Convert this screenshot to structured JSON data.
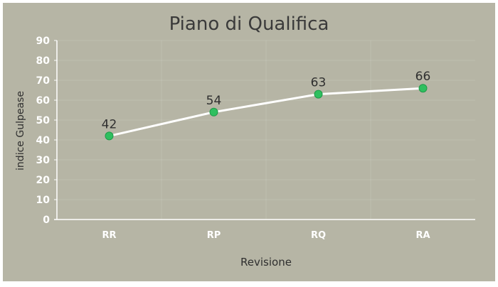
{
  "chart_data": {
    "type": "line",
    "title": "Piano di Qualifica",
    "xlabel": "Revisione",
    "ylabel": "indice Gulpease",
    "categories": [
      "RR",
      "RP",
      "RQ",
      "RA"
    ],
    "series": [
      {
        "values": [
          42,
          54,
          63,
          66
        ]
      }
    ],
    "ylim": [
      0,
      90
    ],
    "yticks": [
      "0",
      "10",
      "20",
      "30",
      "40",
      "50",
      "60",
      "70",
      "80",
      "90"
    ],
    "data_labels": [
      "42",
      "54",
      "63",
      "66"
    ],
    "grid": true,
    "legend": "none"
  },
  "colors": {
    "background": "#b6b5a5",
    "line": "#ffffff",
    "marker": "#2fbf5f",
    "marker_stroke": "#1f9a48",
    "title_text": "#3a3a3a",
    "tick_text": "#ffffff",
    "label_text": "#2f2f2f"
  }
}
